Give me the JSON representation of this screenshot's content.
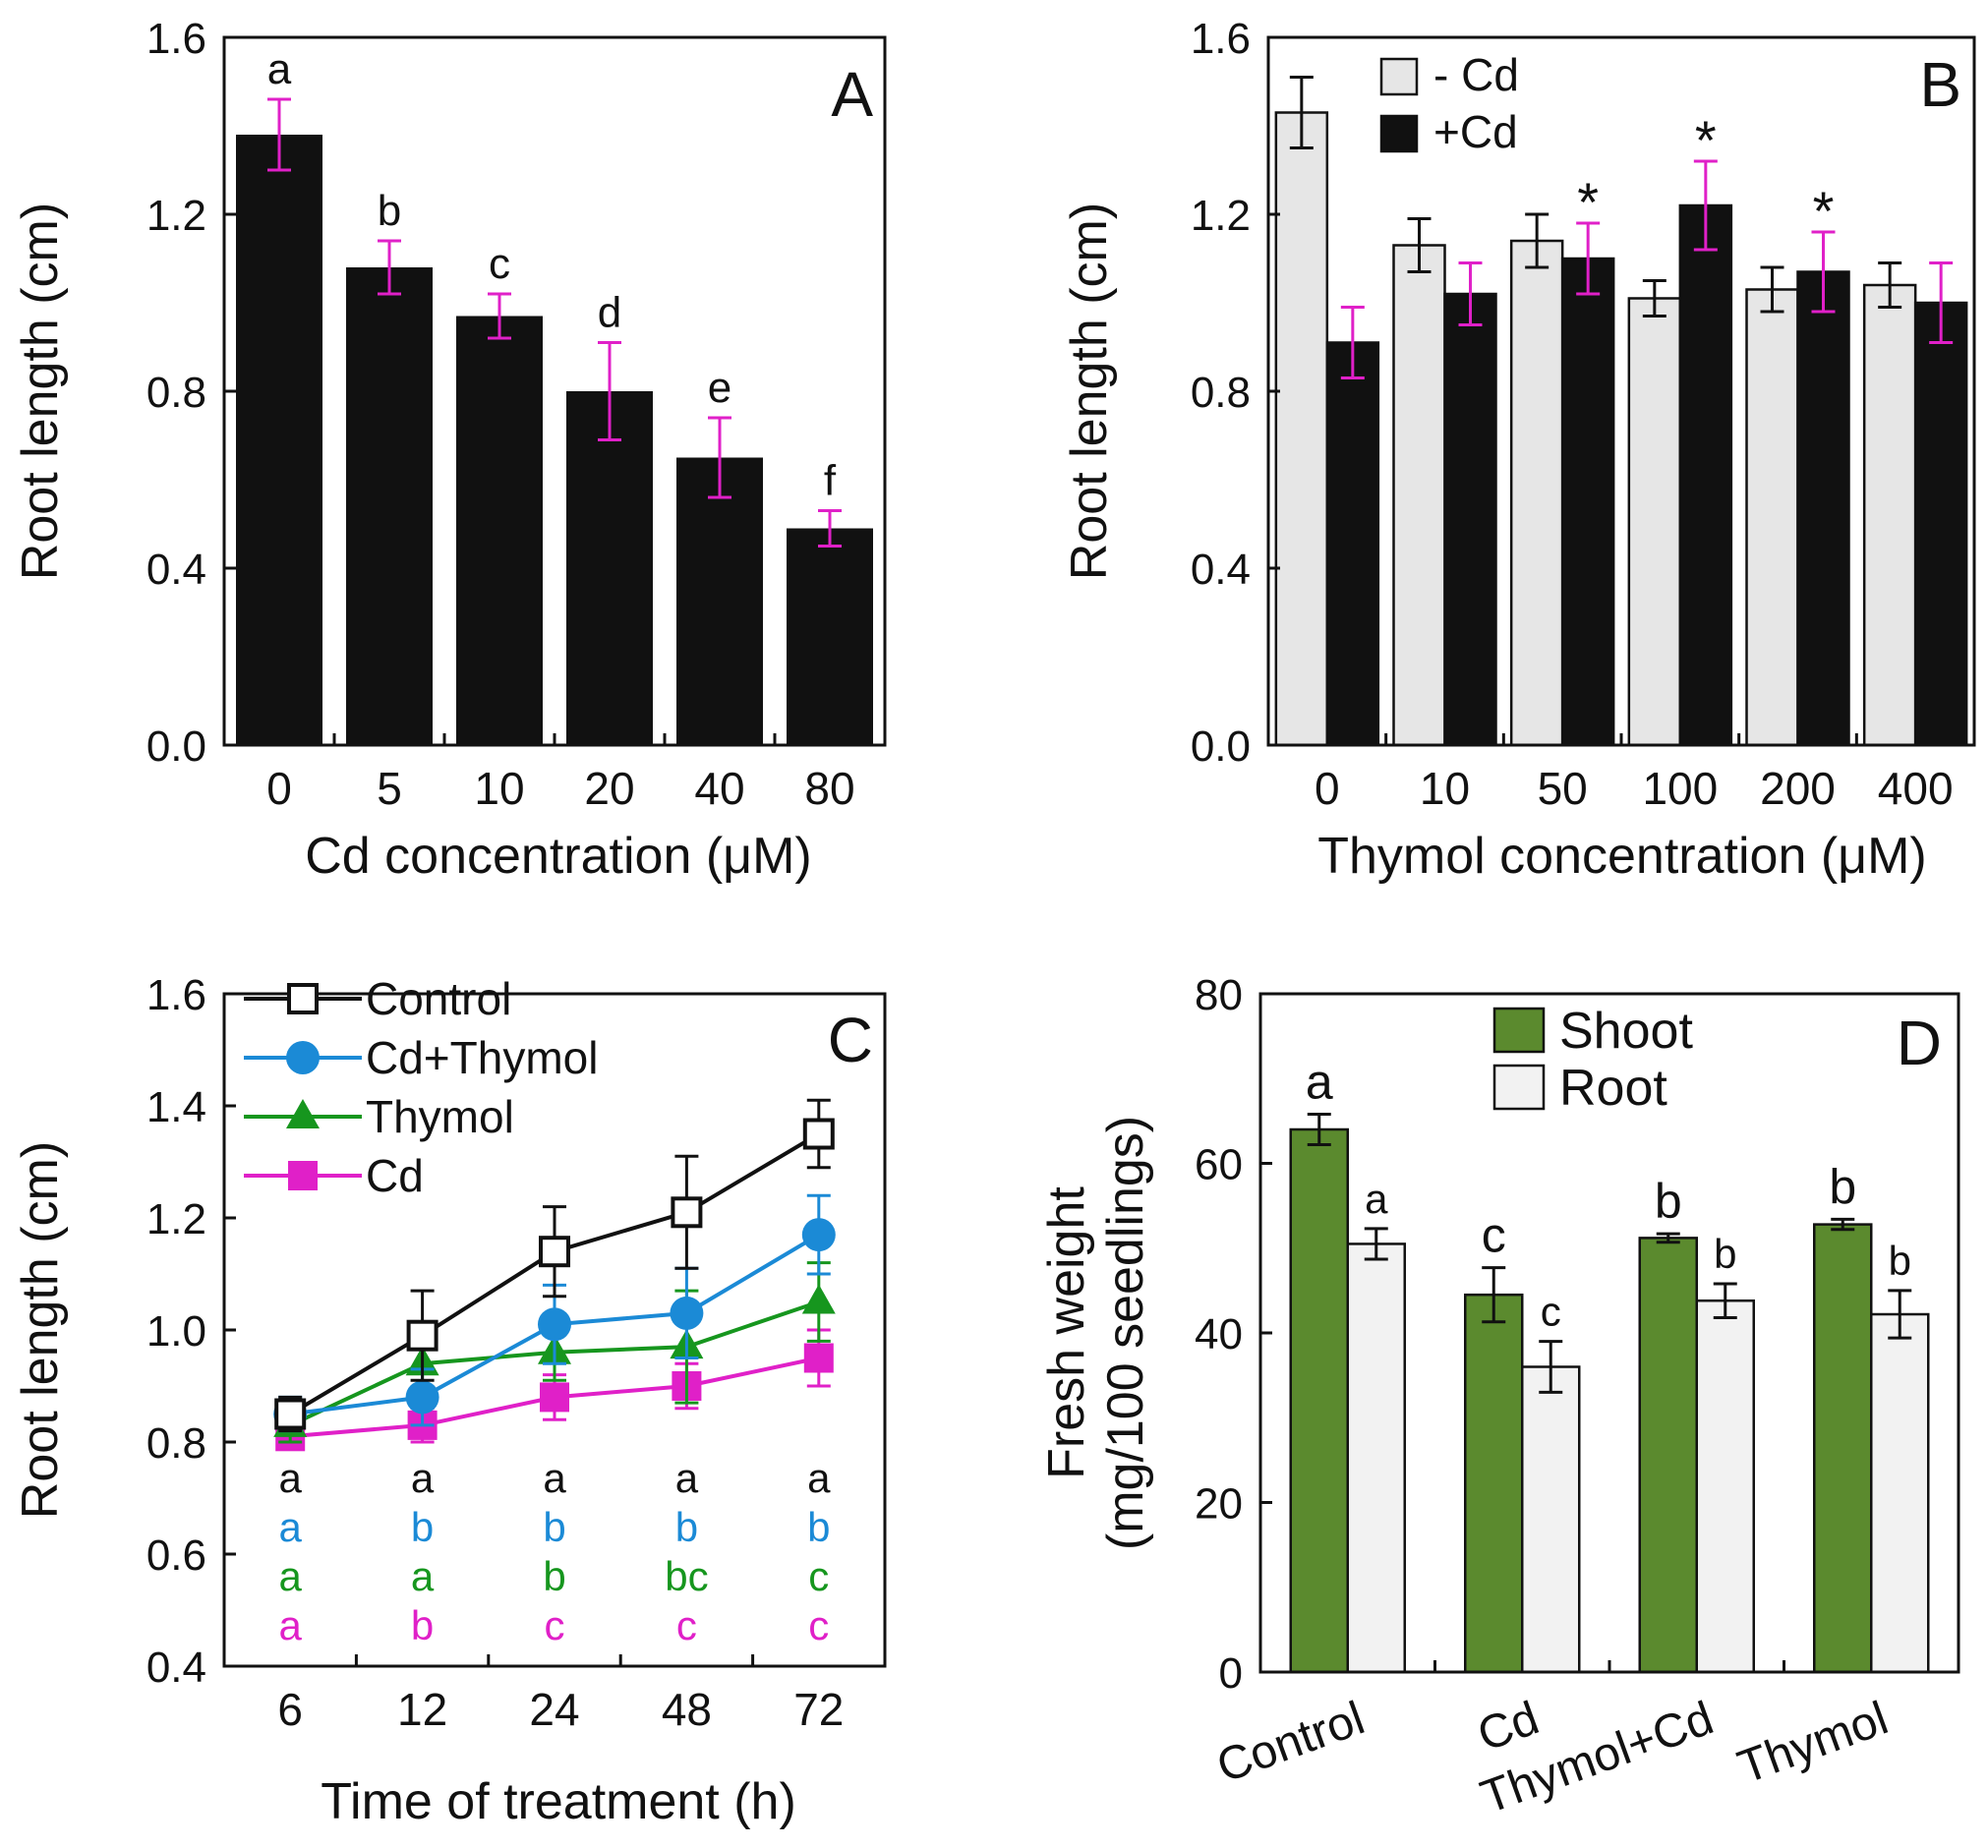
{
  "colors": {
    "black": "#111111",
    "magenta": "#e020c8",
    "light_gray": "#e6e6e6",
    "blue": "#1b8ad6",
    "green": "#16961e",
    "olive_green": "#5b8a2e",
    "root_fill": "#f2f2f2"
  },
  "chart_data": [
    {
      "panel": "A",
      "type": "bar",
      "panel_label": "A",
      "xlabel": "Cd concentration (μM)",
      "ylabel": "Root length (cm)",
      "ylim": [
        0,
        1.6
      ],
      "yticks": [
        "0.0",
        "0.4",
        "0.8",
        "1.2",
        "1.6"
      ],
      "categories": [
        "0",
        "5",
        "10",
        "20",
        "40",
        "80"
      ],
      "values": [
        1.38,
        1.08,
        0.97,
        0.8,
        0.65,
        0.49
      ],
      "errors": [
        0.08,
        0.06,
        0.05,
        0.11,
        0.09,
        0.04
      ],
      "letters": [
        "a",
        "b",
        "c",
        "d",
        "e",
        "f"
      ]
    },
    {
      "panel": "B",
      "type": "bar",
      "panel_label": "B",
      "xlabel": "Thymol concentration (μM)",
      "ylabel": "Root length (cm)",
      "ylim": [
        0,
        1.6
      ],
      "yticks": [
        "0.0",
        "0.4",
        "0.8",
        "1.2",
        "1.6"
      ],
      "categories": [
        "0",
        "10",
        "50",
        "100",
        "200",
        "400"
      ],
      "series": [
        {
          "name": "- Cd",
          "values": [
            1.43,
            1.13,
            1.14,
            1.01,
            1.03,
            1.04
          ],
          "errors": [
            0.08,
            0.06,
            0.06,
            0.04,
            0.05,
            0.05
          ]
        },
        {
          "name": "+Cd",
          "values": [
            0.91,
            1.02,
            1.1,
            1.22,
            1.07,
            1.0
          ],
          "errors": [
            0.08,
            0.07,
            0.08,
            0.1,
            0.09,
            0.09
          ]
        }
      ],
      "significance": [
        "",
        "",
        "*",
        "*",
        "*",
        ""
      ]
    },
    {
      "panel": "C",
      "type": "line",
      "panel_label": "C",
      "xlabel": "Time of treatment (h)",
      "ylabel": "Root length (cm)",
      "ylim": [
        0.4,
        1.6
      ],
      "yticks": [
        "0.4",
        "0.6",
        "0.8",
        "1.0",
        "1.2",
        "1.4",
        "1.6"
      ],
      "x": [
        "6",
        "12",
        "24",
        "48",
        "72"
      ],
      "series": [
        {
          "name": "Control",
          "values": [
            0.85,
            0.99,
            1.14,
            1.21,
            1.35
          ],
          "errors": [
            0.03,
            0.08,
            0.08,
            0.1,
            0.06
          ],
          "letters": [
            "a",
            "a",
            "a",
            "a",
            "a"
          ]
        },
        {
          "name": "Cd+Thymol",
          "values": [
            0.85,
            0.88,
            1.01,
            1.03,
            1.17
          ],
          "errors": [
            0.03,
            0.05,
            0.07,
            0.08,
            0.07
          ],
          "letters": [
            "a",
            "b",
            "b",
            "b",
            "b"
          ]
        },
        {
          "name": "Thymol",
          "values": [
            0.83,
            0.94,
            0.96,
            0.97,
            1.05
          ],
          "errors": [
            0.03,
            0.05,
            0.05,
            0.1,
            0.07
          ],
          "letters": [
            "a",
            "a",
            "b",
            "bc",
            "c"
          ]
        },
        {
          "name": "Cd",
          "values": [
            0.81,
            0.83,
            0.88,
            0.9,
            0.95
          ],
          "errors": [
            0.02,
            0.03,
            0.04,
            0.04,
            0.05
          ],
          "letters": [
            "a",
            "b",
            "c",
            "c",
            "c"
          ]
        }
      ]
    },
    {
      "panel": "D",
      "type": "bar",
      "panel_label": "D",
      "xlabel": "",
      "ylabel_line1": "Fresh weight",
      "ylabel_line2": "(mg/100 seedlings)",
      "ylim": [
        0,
        80
      ],
      "yticks": [
        "0",
        "20",
        "40",
        "60",
        "80"
      ],
      "categories": [
        "Control",
        "Cd",
        "Thymol+Cd",
        "Thymol"
      ],
      "series": [
        {
          "name": "Shoot",
          "values": [
            64,
            44.5,
            51.2,
            52.8
          ],
          "errors": [
            1.8,
            3.2,
            0.5,
            0.6
          ],
          "letters": [
            "a",
            "c",
            "b",
            "b"
          ]
        },
        {
          "name": "Root",
          "values": [
            50.5,
            36,
            43.8,
            42.2
          ],
          "errors": [
            1.8,
            3.0,
            2.0,
            2.8
          ],
          "letters": [
            "a",
            "c",
            "b",
            "b"
          ]
        }
      ]
    }
  ]
}
